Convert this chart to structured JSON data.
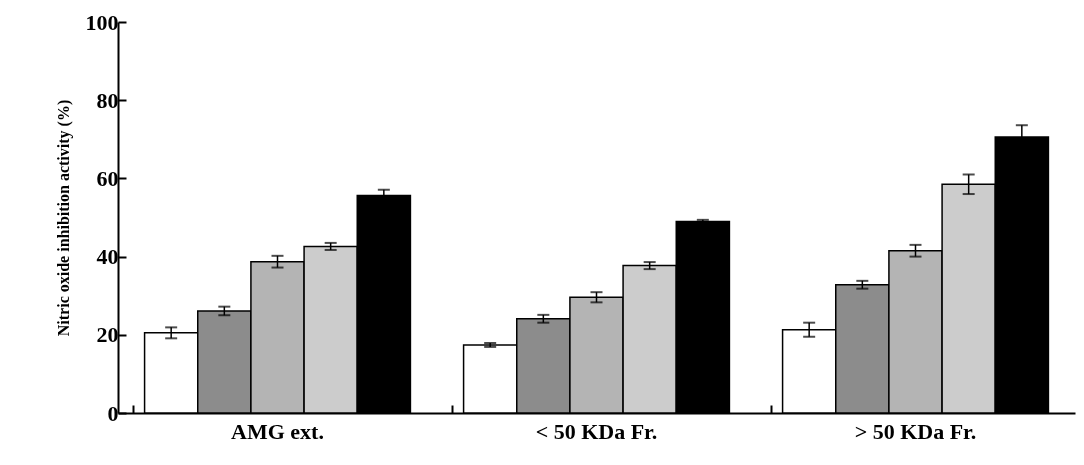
{
  "chart_data": {
    "type": "bar",
    "ylabel": "Nitric oxide inhibition activity (%)",
    "categories": [
      "AMG ext.",
      "< 50 KDa Fr.",
      "> 50 KDa Fr."
    ],
    "series": [
      {
        "color": "#ffffff",
        "values": [
          20.5,
          17.4,
          21.3
        ],
        "errors": [
          1.4,
          0.5,
          1.8
        ]
      },
      {
        "color": "#8c8c8c",
        "values": [
          26.1,
          24.1,
          32.8
        ],
        "errors": [
          1.1,
          1.0,
          1.0
        ]
      },
      {
        "color": "#b4b4b4",
        "values": [
          38.7,
          29.6,
          41.5
        ],
        "errors": [
          1.5,
          1.3,
          1.5
        ]
      },
      {
        "color": "#cccccc",
        "values": [
          42.6,
          37.7,
          58.5
        ],
        "errors": [
          0.9,
          0.9,
          2.5
        ]
      },
      {
        "color": "#000000",
        "values": [
          55.6,
          49.0,
          70.6
        ],
        "errors": [
          1.5,
          0.4,
          3.0
        ]
      }
    ],
    "ylim": [
      0,
      100
    ],
    "yticks": [
      0,
      20,
      40,
      60,
      80,
      100
    ],
    "grid": false,
    "legend": false
  }
}
